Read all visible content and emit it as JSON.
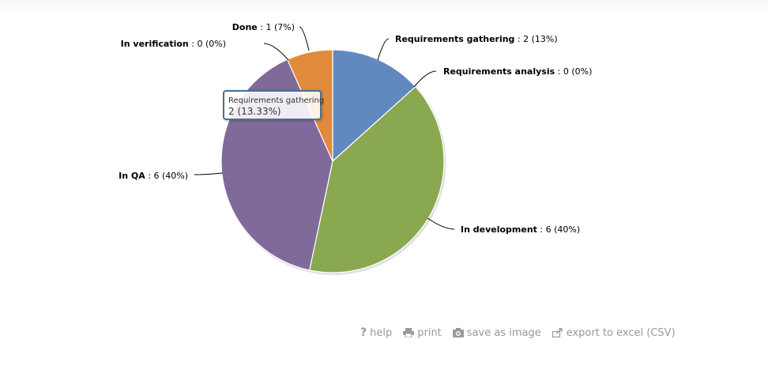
{
  "chart_data": {
    "type": "pie",
    "slices": [
      {
        "name": "Requirements gathering",
        "value": 2,
        "percent_label": "13%",
        "color": "#6189c0"
      },
      {
        "name": "Requirements analysis",
        "value": 0,
        "percent_label": "0%",
        "color": "#c0504d"
      },
      {
        "name": "In development",
        "value": 6,
        "percent_label": "40%",
        "color": "#8aa84f"
      },
      {
        "name": "In QA",
        "value": 6,
        "percent_label": "40%",
        "color": "#7f6a9a"
      },
      {
        "name": "In verification",
        "value": 0,
        "percent_label": "0%",
        "color": "#4bacc6"
      },
      {
        "name": "Done",
        "value": 1,
        "percent_label": "7%",
        "color": "#e08a3c"
      }
    ],
    "tooltip": {
      "name": "Requirements gathering",
      "value_text": "2 (13.33%)"
    }
  },
  "actions": [
    {
      "label": "help",
      "icon": "help-icon"
    },
    {
      "label": "print",
      "icon": "print-icon"
    },
    {
      "label": "save as image",
      "icon": "camera-icon"
    },
    {
      "label": "export to excel (CSV)",
      "icon": "export-icon"
    }
  ]
}
